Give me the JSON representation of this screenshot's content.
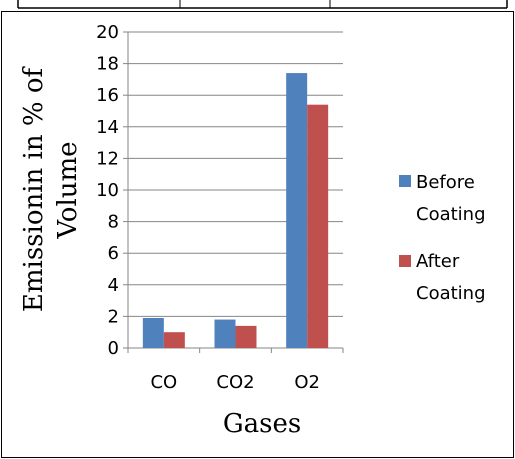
{
  "chart_data": {
    "type": "bar",
    "categories": [
      "CO",
      "CO2",
      "O2"
    ],
    "series": [
      {
        "name": "Before Coating",
        "values": [
          1.9,
          1.8,
          17.4
        ],
        "color": "#4F81BD"
      },
      {
        "name": "After Coating",
        "values": [
          1.0,
          1.4,
          15.4
        ],
        "color": "#C0504D"
      }
    ],
    "xlabel": "Gases",
    "ylabel": "Emissionin in % of Volume",
    "ylim": [
      0,
      20
    ],
    "yticks": [
      0,
      2,
      4,
      6,
      8,
      10,
      12,
      14,
      16,
      18,
      20
    ],
    "grid": true,
    "legend_position": "right"
  },
  "legend": {
    "before_line1": "Before",
    "before_line2": "Coating",
    "after_line1": "After",
    "after_line2": "Coating"
  },
  "ylabel_lines": [
    "Emissionin in % of",
    "Volume"
  ]
}
